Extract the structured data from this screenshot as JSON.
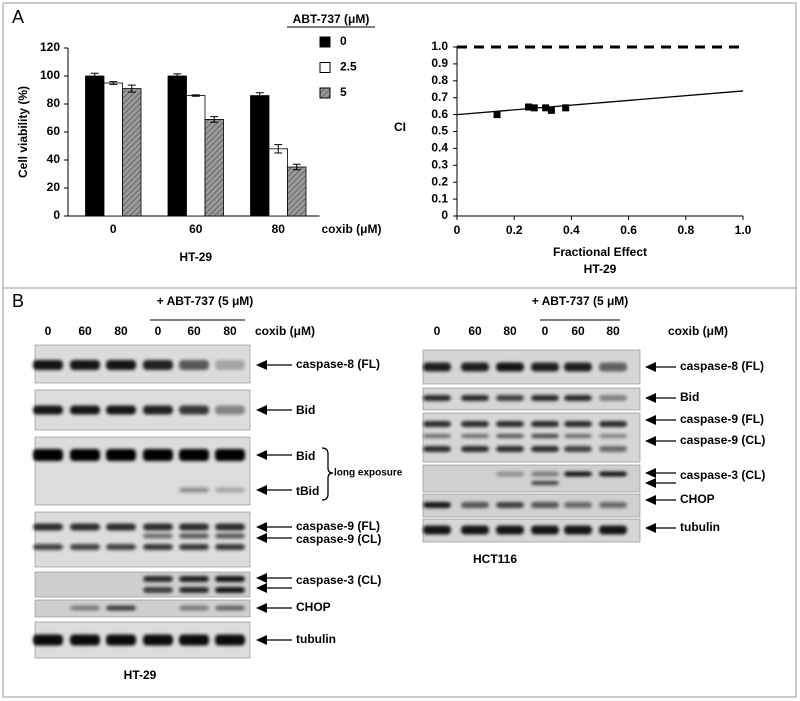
{
  "panel_labels": [
    "A",
    "B"
  ],
  "chart_data": [
    {
      "type": "bar",
      "y_label": "Cell viability (%)",
      "x_label": "coxib (μM)",
      "subtitle": "HT-29",
      "legend_title": "ABT-737 (μM)",
      "categories": [
        "0",
        "60",
        "80"
      ],
      "series": [
        {
          "name": "0",
          "color": "#000000",
          "values": [
            100,
            100,
            86
          ],
          "errors": [
            2,
            1.5,
            2
          ]
        },
        {
          "name": "2.5",
          "color": "#ffffff",
          "values": [
            95,
            86,
            48
          ],
          "errors": [
            1,
            0.5,
            3
          ]
        },
        {
          "name": "5",
          "color": "#9a9a9a",
          "hatch": true,
          "values": [
            91,
            69,
            35
          ],
          "errors": [
            2.5,
            2,
            2
          ]
        }
      ],
      "ylim": [
        0,
        120
      ],
      "yticks": [
        0,
        20,
        40,
        60,
        80,
        100,
        120
      ]
    },
    {
      "type": "scatter",
      "y_label": "CI",
      "x_label": "Fractional Effect",
      "subtitle": "HT-29",
      "x": [
        0.14,
        0.25,
        0.27,
        0.31,
        0.33,
        0.38
      ],
      "values": [
        0.6,
        0.645,
        0.64,
        0.64,
        0.625,
        0.64
      ],
      "color": "#000000",
      "fit": {
        "x": [
          0,
          1
        ],
        "values": [
          0.6,
          0.74
        ]
      },
      "reference_y": 1,
      "xlim": [
        0,
        1
      ],
      "xticks": [
        0,
        0.2,
        0.4,
        0.6,
        0.8,
        {
          "value": 1,
          "label": "1.0"
        }
      ],
      "ylim": [
        0,
        1
      ],
      "yticks": [
        0,
        0.1,
        0.2,
        0.3,
        0.4,
        0.5,
        0.6,
        0.7,
        0.8,
        0.9,
        {
          "value": 1,
          "label": "1.0"
        }
      ]
    }
  ],
  "blots": [
    {
      "treatment": "+ ABT-737 (5 μM)",
      "lanes": [
        "0",
        "60",
        "80",
        "0",
        "60",
        "80"
      ],
      "lane_unit": "coxib (μM)",
      "cell_line": "HT-29",
      "note": "long exposure",
      "strips": [
        {
          "labels": [
            "caspase-8 (FL)"
          ]
        },
        {
          "labels": [
            "Bid"
          ]
        },
        {
          "labels": [
            "Bid",
            "tBid"
          ]
        },
        {
          "labels": [
            "caspase-9 (FL)",
            "caspase-9 (CL)"
          ]
        },
        {
          "labels": [
            "caspase-3 (CL)"
          ]
        },
        {
          "labels": [
            "CHOP"
          ]
        },
        {
          "labels": [
            "tubulin"
          ]
        }
      ]
    },
    {
      "treatment": "+ ABT-737 (5 μM)",
      "lanes": [
        "0",
        "60",
        "80",
        "0",
        "60",
        "80"
      ],
      "lane_unit": "coxib (μM)",
      "cell_line": "HCT116",
      "strips": [
        {
          "labels": [
            "caspase-8 (FL)"
          ]
        },
        {
          "labels": [
            "Bid"
          ]
        },
        {
          "labels": [
            "caspase-9 (FL)",
            "caspase-9 (CL)"
          ]
        },
        {
          "labels": [
            "caspase-3 (CL)"
          ]
        },
        {
          "labels": [
            "CHOP"
          ]
        },
        {
          "labels": [
            "tubulin"
          ]
        }
      ]
    }
  ]
}
